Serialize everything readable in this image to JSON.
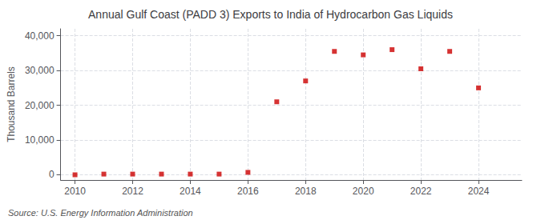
{
  "chart_data": {
    "type": "scatter",
    "title": "Annual Gulf Coast (PADD 3) Exports to India of Hydrocarbon Gas Liquids",
    "ylabel": "Thousand Barrels",
    "annotations": [
      "Source: U.S. Energy Information Administration"
    ],
    "x": [
      2010,
      2011,
      2012,
      2013,
      2014,
      2015,
      2016,
      2017,
      2018,
      2019,
      2020,
      2021,
      2022,
      2023,
      2024
    ],
    "values": [
      0,
      200,
      200,
      200,
      200,
      200,
      700,
      21000,
      27000,
      35500,
      34500,
      36000,
      30500,
      35500,
      25000
    ],
    "color": "#cc0000",
    "marker": "square",
    "xlim": [
      2009.5,
      2025.5
    ],
    "xticks": [
      2010,
      2012,
      2014,
      2016,
      2018,
      2020,
      2022,
      2024
    ],
    "ylim": [
      -1500,
      42000
    ],
    "yticks": [
      0,
      {
        "value": 10000,
        "label": "10,000"
      },
      {
        "value": 20000,
        "label": "20,000"
      },
      {
        "value": 30000,
        "label": "30,000"
      },
      {
        "value": 40000,
        "label": "40,000"
      }
    ],
    "grid": true
  }
}
